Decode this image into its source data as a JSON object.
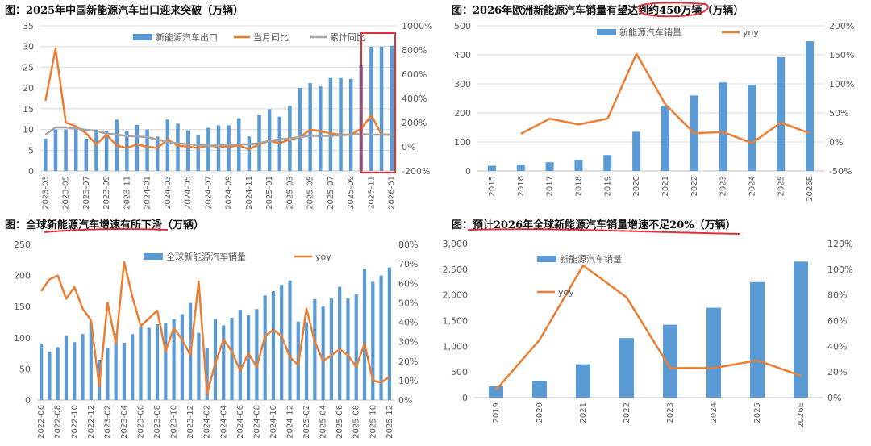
{
  "chart_data": [
    {
      "id": "tl",
      "type": "bar+line",
      "title": "图：2025年中国新能源汽车出口迎来突破（万辆）",
      "categories": [
        "2023-03",
        "2023-04",
        "2023-05",
        "2023-06",
        "2023-07",
        "2023-08",
        "2023-09",
        "2023-10",
        "2023-11",
        "2023-12",
        "2024-01",
        "2024-02",
        "2024-03",
        "2024-04",
        "2024-05",
        "2024-06",
        "2024-07",
        "2024-08",
        "2024-09",
        "2024-10",
        "2024-11",
        "2024-12",
        "2025-01",
        "2025-02",
        "2025-03",
        "2025-04",
        "2025-05",
        "2025-06",
        "2025-07",
        "2025-08",
        "2025-09",
        "2025-10",
        "2025-11",
        "2025-12",
        "2026-01"
      ],
      "tick_labels": [
        "2023-03",
        "2023-05",
        "2023-07",
        "2023-09",
        "2023-11",
        "2024-01",
        "2024-03",
        "2024-05",
        "2024-07",
        "2024-09",
        "2024-11",
        "2025-01",
        "2025-03",
        "2025-05",
        "2025-07",
        "2025-09",
        "2025-11",
        "2026-01"
      ],
      "series": [
        {
          "name": "新能源汽车出口",
          "kind": "bar",
          "axis": "left",
          "color": "#5b9bd5",
          "values": [
            7.8,
            10,
            10,
            10,
            7.8,
            10,
            9.6,
            12.4,
            9.6,
            11.1,
            10,
            8.3,
            12.4,
            11.4,
            9.8,
            8.6,
            10.4,
            11,
            11,
            12.7,
            8.3,
            13.5,
            14.9,
            13.1,
            15.7,
            20,
            21.2,
            20.4,
            22.4,
            22.4,
            22.2,
            25.5,
            30,
            30,
            30.2
          ]
        },
        {
          "name": "当月同比",
          "kind": "line",
          "axis": "right",
          "color": "#ed7d31",
          "values": [
            380,
            810,
            200,
            170,
            110,
            20,
            100,
            10,
            -10,
            20,
            0,
            -10,
            60,
            10,
            0,
            -10,
            10,
            0,
            0,
            10,
            -20,
            20,
            50,
            30,
            60,
            80,
            140,
            130,
            110,
            100,
            100,
            150,
            260,
            100,
            100
          ]
        },
        {
          "name": "累计同比",
          "kind": "line",
          "axis": "right",
          "color": "#a5a5a5",
          "values": [
            100,
            160,
            160,
            150,
            140,
            130,
            110,
            100,
            90,
            85,
            80,
            60,
            40,
            30,
            20,
            15,
            10,
            10,
            15,
            20,
            20,
            30,
            50,
            60,
            70,
            80,
            90,
            90,
            90,
            95,
            100,
            105,
            100,
            100,
            100
          ]
        }
      ],
      "left_axis": {
        "range": [
          0,
          35
        ],
        "ticks": [
          "0",
          "5",
          "10",
          "15",
          "20",
          "25",
          "30",
          "35"
        ]
      },
      "right_axis": {
        "range": [
          -200,
          1000
        ],
        "ticks": [
          "-200%",
          "0%",
          "200%",
          "400%",
          "600%",
          "800%",
          "1000%"
        ]
      }
    },
    {
      "id": "tr",
      "type": "bar+line",
      "title": "图：2026年欧洲新能源汽车销量有望达到约450万辆（万辆）",
      "categories": [
        "2015",
        "2016",
        "2017",
        "2018",
        "2019",
        "2020",
        "2021",
        "2022",
        "2023",
        "2024",
        "2025",
        "2026E"
      ],
      "series": [
        {
          "name": "新能源汽车销量",
          "kind": "bar",
          "axis": "left",
          "color": "#5b9bd5",
          "values": [
            18,
            22,
            30,
            38,
            55,
            135,
            225,
            260,
            305,
            297,
            392,
            447
          ]
        },
        {
          "name": "yoy",
          "kind": "line",
          "axis": "right",
          "color": "#ed7d31",
          "values": [
            null,
            14,
            40,
            30,
            40,
            152,
            65,
            15,
            17,
            -2,
            33,
            15
          ]
        }
      ],
      "left_axis": {
        "range": [
          0,
          500
        ],
        "ticks": [
          "0",
          "100",
          "200",
          "300",
          "400",
          "500"
        ]
      },
      "right_axis": {
        "range": [
          -50,
          200
        ],
        "ticks": [
          "-50%",
          "0%",
          "50%",
          "100%",
          "150%",
          "200%"
        ]
      }
    },
    {
      "id": "bl",
      "type": "bar+line",
      "title": "图：全球新能源汽车增速有所下滑（万辆）",
      "categories": [
        "2022-06",
        "2022-07",
        "2022-08",
        "2022-09",
        "2022-10",
        "2022-11",
        "2022-12",
        "2023-01",
        "2023-02",
        "2023-03",
        "2023-04",
        "2023-05",
        "2023-06",
        "2023-07",
        "2023-08",
        "2023-09",
        "2023-10",
        "2023-11",
        "2023-12",
        "2024-01",
        "2024-02",
        "2024-03",
        "2024-04",
        "2024-05",
        "2024-06",
        "2024-07",
        "2024-08",
        "2024-09",
        "2024-10",
        "2024-11",
        "2024-12",
        "2025-01",
        "2025-02",
        "2025-03",
        "2025-04",
        "2025-05",
        "2025-06",
        "2025-07",
        "2025-08",
        "2025-09",
        "2025-10",
        "2025-11",
        "2025-12"
      ],
      "tick_labels": [
        "2022-06",
        "2022-08",
        "2022-10",
        "2022-12",
        "2023-02",
        "2023-04",
        "2023-06",
        "2023-08",
        "2023-10",
        "2023-12",
        "2024-02",
        "2024-04",
        "2024-06",
        "2024-08",
        "2024-10",
        "2024-12",
        "2025-02",
        "2025-04",
        "2025-06",
        "2025-08",
        "2025-10",
        "2025-12"
      ],
      "series": [
        {
          "name": "全球新能源汽车销量",
          "kind": "bar",
          "axis": "left",
          "color": "#5b9bd5",
          "values": [
            91,
            78,
            85,
            104,
            93,
            106,
            125,
            65,
            83,
            107,
            92,
            106,
            118,
            116,
            122,
            124,
            130,
            138,
            156,
            108,
            83,
            130,
            120,
            132,
            145,
            136,
            146,
            168,
            175,
            185,
            192,
            126,
            125,
            162,
            150,
            163,
            182,
            163,
            170,
            210,
            190,
            200,
            213
          ]
        },
        {
          "name": "yoy",
          "kind": "line",
          "axis": "right",
          "color": "#ed7d31",
          "values": [
            56,
            62,
            64,
            52,
            58,
            47,
            41,
            7,
            50,
            29,
            71,
            53,
            38,
            42,
            46,
            25,
            37,
            31,
            23,
            61,
            3,
            19,
            31,
            25,
            15,
            24,
            17,
            33,
            36,
            33,
            22,
            18,
            47,
            30,
            20,
            23,
            26,
            23,
            17,
            29,
            10,
            9,
            12
          ]
        }
      ],
      "left_axis": {
        "range": [
          0,
          250
        ],
        "ticks": [
          "0",
          "50",
          "100",
          "150",
          "200",
          "250"
        ]
      },
      "right_axis": {
        "range": [
          0,
          80
        ],
        "ticks": [
          "0%",
          "10%",
          "20%",
          "30%",
          "40%",
          "50%",
          "60%",
          "70%",
          "80%"
        ]
      }
    },
    {
      "id": "br",
      "type": "bar+line",
      "title": "图：预计2026年全球新能源汽车销量增速不足20%（万辆）",
      "categories": [
        "2019",
        "2020",
        "2021",
        "2022",
        "2023",
        "2024",
        "2025",
        "2026E"
      ],
      "series": [
        {
          "name": "新能源汽车销量",
          "kind": "bar",
          "axis": "left",
          "color": "#5b9bd5",
          "values": [
            220,
            325,
            650,
            1160,
            1420,
            1750,
            2250,
            2650
          ]
        },
        {
          "name": "yoy",
          "kind": "line",
          "axis": "right",
          "color": "#ed7d31",
          "values": [
            6,
            45,
            103,
            78,
            23,
            23,
            29,
            17
          ]
        }
      ],
      "left_axis": {
        "range": [
          0,
          3000
        ],
        "ticks": [
          "0",
          "500",
          "1,000",
          "1,500",
          "2,000",
          "2,500",
          "3,000"
        ]
      },
      "right_axis": {
        "range": [
          0,
          120
        ],
        "ticks": [
          "0%",
          "20%",
          "40%",
          "60%",
          "80%",
          "100%",
          "120%"
        ]
      }
    }
  ]
}
